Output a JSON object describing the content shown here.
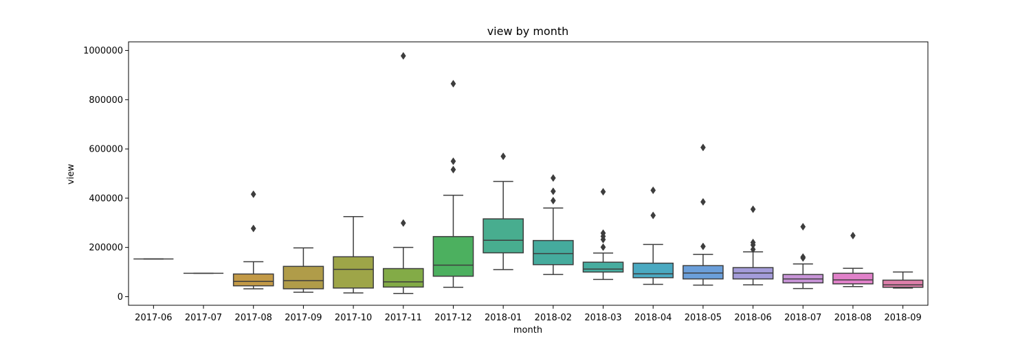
{
  "chart_data": {
    "type": "box",
    "title": "view by month",
    "xlabel": "month",
    "ylabel": "view",
    "ylim": [
      -35000,
      1035000
    ],
    "yticks": [
      0,
      200000,
      400000,
      600000,
      800000,
      1000000
    ],
    "ytick_labels": [
      "0",
      "200000",
      "400000",
      "600000",
      "800000",
      "1000000"
    ],
    "grid": false,
    "line_color": "#3d3d3d",
    "categories": [
      "2017-06",
      "2017-07",
      "2017-08",
      "2017-09",
      "2017-10",
      "2017-11",
      "2017-12",
      "2018-01",
      "2018-02",
      "2018-03",
      "2018-04",
      "2018-05",
      "2018-06",
      "2018-07",
      "2018-08",
      "2018-09"
    ],
    "boxes": [
      {
        "month": "2017-06",
        "color": "#c39b95",
        "whislo": 153000,
        "q1": 153000,
        "med": 153000,
        "q3": 153000,
        "whishi": 153000,
        "fliers": []
      },
      {
        "month": "2017-07",
        "color": "#c5a17d",
        "whislo": 95000,
        "q1": 95000,
        "med": 95000,
        "q3": 95000,
        "whishi": 95000,
        "fliers": []
      },
      {
        "month": "2017-08",
        "color": "#c39a47",
        "whislo": 32000,
        "q1": 44000,
        "med": 62000,
        "q3": 92000,
        "whishi": 142000,
        "fliers": [
          277000,
          416000
        ]
      },
      {
        "month": "2017-09",
        "color": "#b09c49",
        "whislo": 18000,
        "q1": 32000,
        "med": 65000,
        "q3": 123000,
        "whishi": 198000,
        "fliers": []
      },
      {
        "month": "2017-10",
        "color": "#9ea548",
        "whislo": 15000,
        "q1": 35000,
        "med": 111000,
        "q3": 162000,
        "whishi": 325000,
        "fliers": []
      },
      {
        "month": "2017-11",
        "color": "#83ab47",
        "whislo": 13000,
        "q1": 39000,
        "med": 60000,
        "q3": 114000,
        "whishi": 200000,
        "fliers": [
          299000,
          978000
        ]
      },
      {
        "month": "2017-12",
        "color": "#4cb05f",
        "whislo": 38000,
        "q1": 83000,
        "med": 128000,
        "q3": 244000,
        "whishi": 412000,
        "fliers": [
          516000,
          550000,
          865000
        ]
      },
      {
        "month": "2018-01",
        "color": "#48ad8f",
        "whislo": 110000,
        "q1": 178000,
        "med": 229000,
        "q3": 316000,
        "whishi": 468000,
        "fliers": [
          570000
        ]
      },
      {
        "month": "2018-02",
        "color": "#45ab9d",
        "whislo": 90000,
        "q1": 130000,
        "med": 175000,
        "q3": 228000,
        "whishi": 360000,
        "fliers": [
          390000,
          428000,
          482000
        ]
      },
      {
        "month": "2018-03",
        "color": "#47ac9f",
        "whislo": 70000,
        "q1": 100000,
        "med": 112000,
        "q3": 140000,
        "whishi": 177000,
        "fliers": [
          201000,
          232000,
          245000,
          258000,
          426000
        ]
      },
      {
        "month": "2018-04",
        "color": "#4aa9c1",
        "whislo": 50000,
        "q1": 77000,
        "med": 93000,
        "q3": 136000,
        "whishi": 212000,
        "fliers": [
          330000,
          432000
        ]
      },
      {
        "month": "2018-05",
        "color": "#6b9fda",
        "whislo": 47000,
        "q1": 72000,
        "med": 96000,
        "q3": 126000,
        "whishi": 172000,
        "fliers": [
          204000,
          385000,
          606000
        ]
      },
      {
        "month": "2018-06",
        "color": "#a49cd9",
        "whislo": 48000,
        "q1": 72000,
        "med": 96000,
        "q3": 118000,
        "whishi": 182000,
        "fliers": [
          192000,
          210000,
          220000,
          355000
        ]
      },
      {
        "month": "2018-07",
        "color": "#c895d8",
        "whislo": 33000,
        "q1": 56000,
        "med": 72000,
        "q3": 90000,
        "whishi": 133000,
        "fliers": [
          157000,
          161000,
          284000
        ]
      },
      {
        "month": "2018-08",
        "color": "#e081c9",
        "whislo": 41000,
        "q1": 52000,
        "med": 68000,
        "q3": 95000,
        "whishi": 115000,
        "fliers": [
          248000
        ]
      },
      {
        "month": "2018-09",
        "color": "#dd7faa",
        "whislo": 35000,
        "q1": 38000,
        "med": 48000,
        "q3": 67000,
        "whishi": 100000,
        "fliers": []
      }
    ]
  }
}
